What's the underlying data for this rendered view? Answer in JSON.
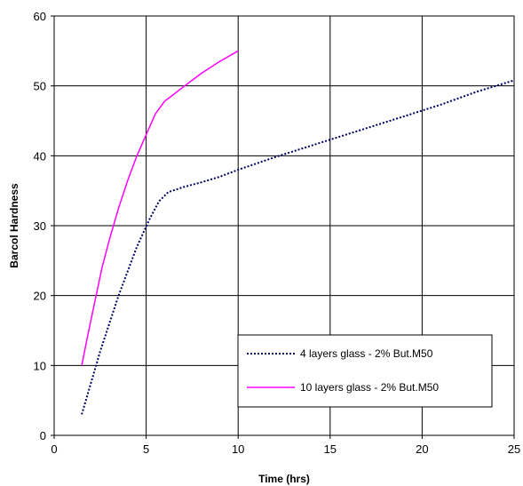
{
  "chart_data": {
    "type": "line",
    "title": "",
    "xlabel": "Time (hrs)",
    "ylabel": "Barcol Hardness",
    "xlim": [
      0,
      25
    ],
    "ylim": [
      0,
      60
    ],
    "x_ticks": [
      "0",
      "5",
      "10",
      "15",
      "20",
      "25"
    ],
    "y_ticks": [
      "0",
      "10",
      "20",
      "30",
      "40",
      "50",
      "60"
    ],
    "grid": true,
    "legend_position": "lower-right",
    "series": [
      {
        "name": "4 layers glass - 2% But.M50",
        "color": "#000066",
        "style": "dotted",
        "x": [
          1.5,
          2.5,
          3.5,
          4.5,
          5.2,
          5.7,
          6.2,
          7.0,
          8.0,
          9.0,
          10.0,
          12.0,
          15.0,
          18.0,
          21.0,
          23.0,
          25.0
        ],
        "y": [
          3,
          12,
          20,
          27,
          31,
          33.5,
          34.8,
          35.5,
          36.2,
          37,
          38,
          39.8,
          42.3,
          44.8,
          47.3,
          49.2,
          50.8
        ]
      },
      {
        "name": "10 layers glass - 2% But.M50",
        "color": "#ff00ff",
        "style": "solid",
        "x": [
          1.5,
          1.8,
          2.2,
          2.6,
          3.0,
          3.5,
          4.0,
          4.5,
          5.0,
          5.5,
          6.0,
          6.5,
          7.0,
          8.0,
          9.0,
          10.0
        ],
        "y": [
          10,
          14,
          19,
          24,
          28,
          32.5,
          36.5,
          40,
          43,
          46,
          47.8,
          48.8,
          49.8,
          51.8,
          53.5,
          55
        ]
      }
    ]
  }
}
